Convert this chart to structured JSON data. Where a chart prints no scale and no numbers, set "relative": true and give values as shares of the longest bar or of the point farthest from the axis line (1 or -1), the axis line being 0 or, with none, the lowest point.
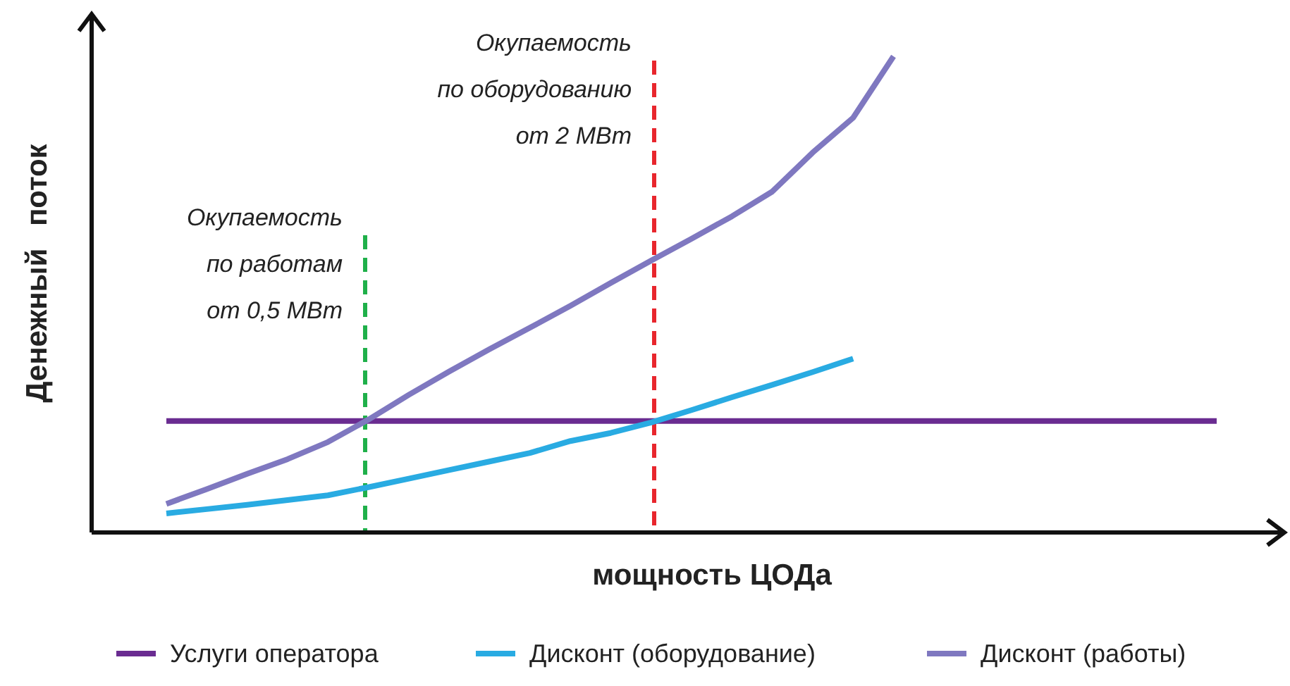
{
  "chart_data": {
    "type": "line",
    "relative": true,
    "xlabel": "мощность ЦОДа",
    "ylabel": "Денежный поток",
    "legend": "bottom",
    "line_style": "solid",
    "categories": [
      null,
      null,
      null,
      null,
      null,
      null,
      null,
      null,
      null,
      null,
      null,
      null,
      null,
      null,
      null,
      null,
      null,
      null,
      null,
      null,
      null,
      null,
      null,
      null,
      null,
      null,
      null
    ],
    "series": [
      {
        "name": "Услуги оператора",
        "color": "#6a2c91",
        "values": [
          0.234,
          0.234,
          0.234,
          0.234,
          0.234,
          0.234,
          0.234,
          0.234,
          0.234,
          0.234,
          0.234,
          0.234,
          0.234,
          0.234,
          0.234,
          0.234,
          0.234,
          0.234,
          0.234,
          0.234,
          0.234,
          0.234,
          0.234,
          0.234,
          0.234,
          0.234,
          0.234
        ]
      },
      {
        "name": "Дисконт (оборудование)",
        "color": "#29abe2",
        "values": [
          0.04,
          0.049,
          0.058,
          0.068,
          0.078,
          0.095,
          0.113,
          0.131,
          0.149,
          0.167,
          0.192,
          0.209,
          0.231,
          0.257,
          0.284,
          0.31,
          0.337,
          0.365,
          null,
          null,
          null,
          null,
          null,
          null,
          null,
          null,
          null
        ]
      },
      {
        "name": "Дисконт (работы)",
        "color": "#7f78c0",
        "values": [
          0.06,
          0.091,
          0.123,
          0.154,
          0.19,
          0.237,
          0.289,
          0.338,
          0.385,
          0.43,
          0.476,
          0.524,
          0.571,
          0.617,
          0.664,
          0.716,
          0.798,
          0.871,
          1,
          null,
          null,
          null,
          null,
          null,
          null,
          null,
          null
        ]
      }
    ],
    "annotations": [
      "Окупаемость\nпо работам\nот 0,5 МВт",
      "Окупаемость\nпо оборудованию\nот 2 МВт"
    ]
  }
}
